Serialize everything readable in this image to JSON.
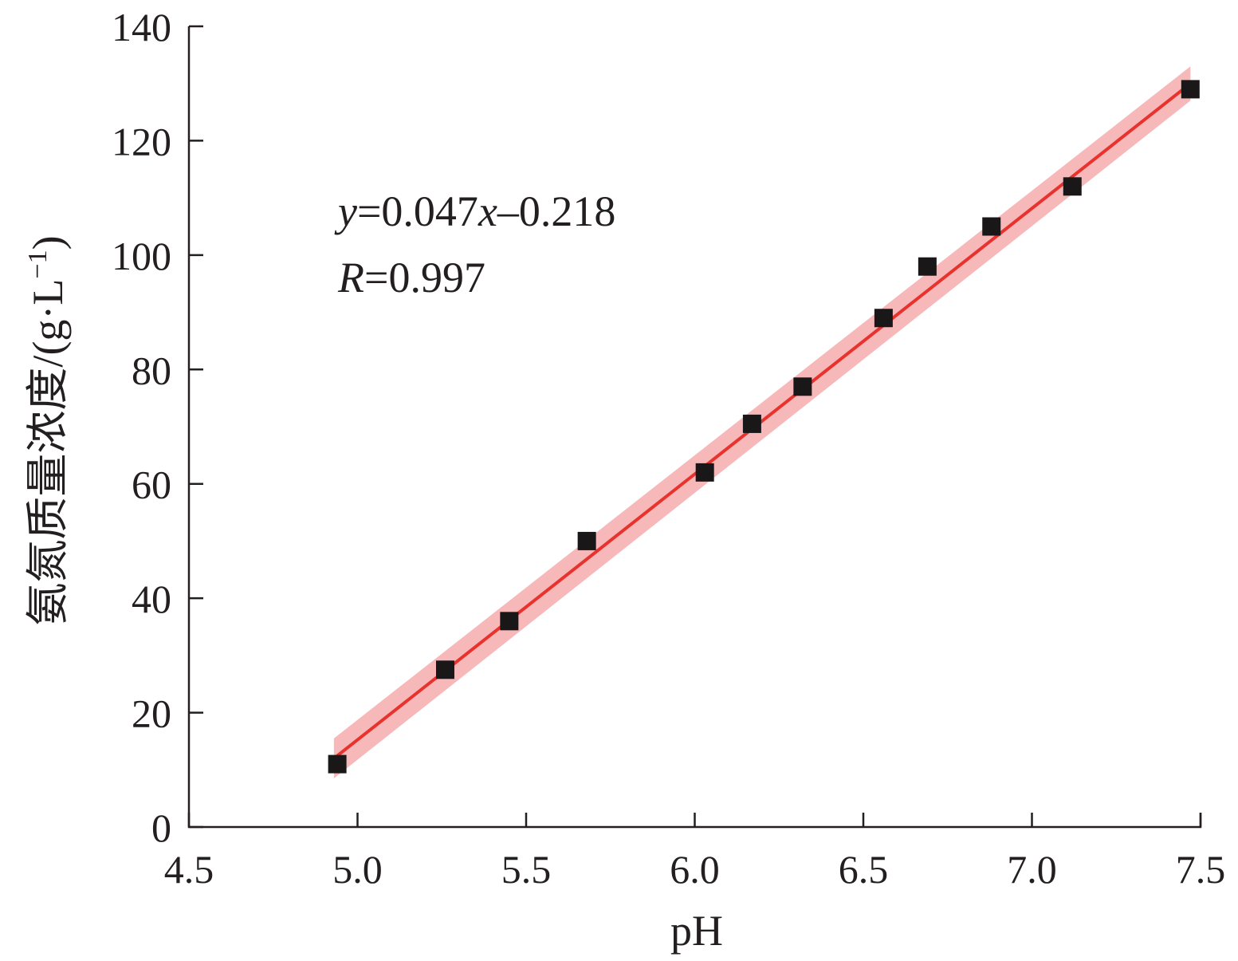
{
  "chart_data": {
    "type": "scatter",
    "xlabel": "pH",
    "ylabel": "氨氮质量浓度/(g·L",
    "ylabel_sup": "−1",
    "ylabel_close": ")",
    "xlim": [
      4.5,
      7.5
    ],
    "ylim": [
      0,
      140
    ],
    "xticks": [
      "4.5",
      "5.0",
      "5.5",
      "6.0",
      "6.5",
      "7.0",
      "7.5"
    ],
    "yticks": [
      "0",
      "20",
      "40",
      "60",
      "80",
      "100",
      "120",
      "140"
    ],
    "grid": false,
    "points": [
      {
        "x": 4.94,
        "y": 11
      },
      {
        "x": 5.26,
        "y": 27.5
      },
      {
        "x": 5.45,
        "y": 36
      },
      {
        "x": 5.68,
        "y": 50
      },
      {
        "x": 6.03,
        "y": 62
      },
      {
        "x": 6.17,
        "y": 70.5
      },
      {
        "x": 6.32,
        "y": 77
      },
      {
        "x": 6.56,
        "y": 89
      },
      {
        "x": 6.69,
        "y": 98
      },
      {
        "x": 6.88,
        "y": 105
      },
      {
        "x": 7.12,
        "y": 112
      },
      {
        "x": 7.47,
        "y": 129
      }
    ],
    "fit_line": {
      "x": [
        4.93,
        7.47
      ],
      "y": [
        12,
        130
      ],
      "band_y_upper": [
        15.5,
        133
      ],
      "band_y_lower": [
        8.5,
        127
      ]
    },
    "annotation": {
      "eq_var": "y",
      "eq_a": "=0.047",
      "eq_var2": "x",
      "eq_b": "–0.218",
      "r_var": "R",
      "r_val": "=0.997"
    },
    "colors": {
      "marker": "#1a1718",
      "line": "#e8322d",
      "band": "#f4a0a2",
      "axis": "#231f20"
    }
  }
}
